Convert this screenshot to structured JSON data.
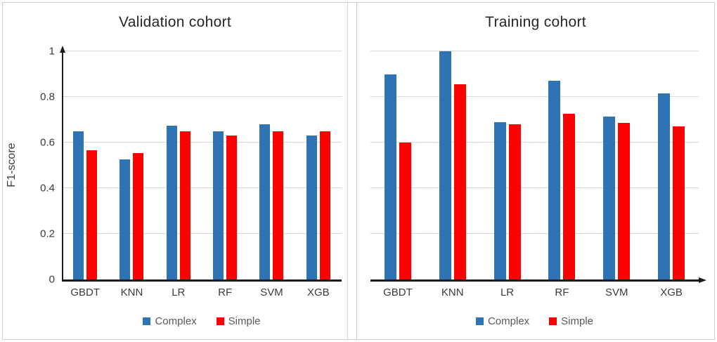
{
  "figure": {
    "background": "#ffffff",
    "border_color": "#cfcfcf",
    "accent_blue": "#2E74B5",
    "accent_red": "#FF0000",
    "gridline_color": "#d9d9d9",
    "axis_color": "#1a1a1a"
  },
  "chart_data": [
    {
      "type": "bar",
      "title": "Validation cohort",
      "xlabel": "",
      "ylabel": "F1-score",
      "categories": [
        "GBDT",
        "KNN",
        "LR",
        "RF",
        "SVM",
        "XGB"
      ],
      "series": [
        {
          "name": "Complex",
          "color": "#2E74B5",
          "values": [
            0.65,
            0.525,
            0.675,
            0.65,
            0.68,
            0.63
          ]
        },
        {
          "name": "Simple",
          "color": "#FF0000",
          "values": [
            0.565,
            0.555,
            0.65,
            0.63,
            0.65,
            0.65
          ]
        }
      ],
      "ylim": [
        0,
        1
      ],
      "yticks": [
        0,
        0.2,
        0.4,
        0.6,
        0.8,
        1
      ],
      "ytick_labels": [
        "0",
        "0.2",
        "0.4",
        "0.6",
        "0.8",
        "1"
      ],
      "grid": true,
      "show_y_axis_line": true,
      "show_y_tick_labels": true,
      "x_axis_arrow": false,
      "legend_position": "bottom",
      "legend": [
        "Complex",
        "Simple"
      ]
    },
    {
      "type": "bar",
      "title": "Training cohort",
      "xlabel": "",
      "ylabel": "",
      "categories": [
        "GBDT",
        "KNN",
        "LR",
        "RF",
        "SVM",
        "XGB"
      ],
      "series": [
        {
          "name": "Complex",
          "color": "#2E74B5",
          "values": [
            0.9,
            1.0,
            0.69,
            0.87,
            0.715,
            0.815
          ]
        },
        {
          "name": "Simple",
          "color": "#FF0000",
          "values": [
            0.6,
            0.855,
            0.68,
            0.725,
            0.685,
            0.67
          ]
        }
      ],
      "ylim": [
        0,
        1
      ],
      "yticks": [
        0,
        0.2,
        0.4,
        0.6,
        0.8,
        1
      ],
      "ytick_labels": [],
      "grid": true,
      "show_y_axis_line": false,
      "show_y_tick_labels": false,
      "x_axis_arrow": true,
      "legend_position": "bottom",
      "legend": [
        "Complex",
        "Simple"
      ]
    }
  ]
}
